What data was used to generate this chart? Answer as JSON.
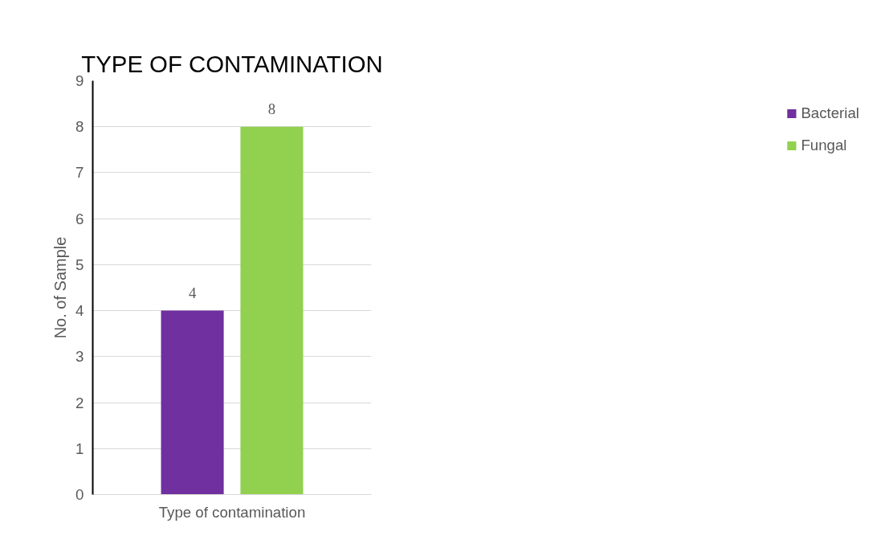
{
  "chart_data": {
    "type": "bar",
    "title": "TYPE OF CONTAMINATION",
    "ylabel": "No. of Sample",
    "categories": [
      "Type of contamination"
    ],
    "series": [
      {
        "name": "Bacterial",
        "color": "#7030a0",
        "values": [
          4
        ]
      },
      {
        "name": "Fungal",
        "color": "#92d050",
        "values": [
          8
        ]
      }
    ],
    "ylim": [
      0,
      9
    ],
    "yticks": [
      0,
      1,
      2,
      3,
      4,
      5,
      6,
      7,
      8,
      9
    ],
    "grid": "y",
    "legend": "right",
    "data_labels": true
  }
}
